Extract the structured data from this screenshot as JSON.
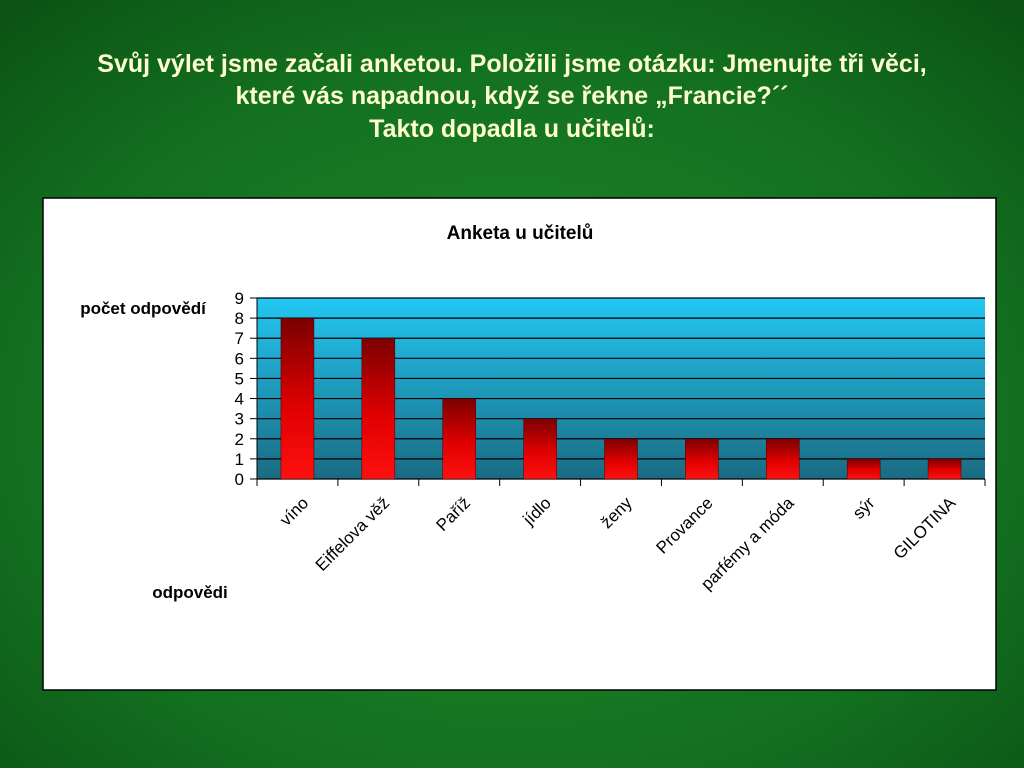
{
  "slide": {
    "heading": [
      "Svůj výlet jsme začali anketou. Položili jsme otázku: Jmenujte tři věci,",
      "které vás napadnou, když se řekne „Francie?´´",
      "Takto dopadla u učitelů:"
    ]
  },
  "chart_data": {
    "type": "bar",
    "title": "Anketa u učitelů",
    "y_label": "počet odpovědí",
    "x_label": "odpovědi",
    "categories": [
      "víno",
      "Eiffelova věž",
      "Paříž",
      "jídlo",
      "ženy",
      "Provance",
      "parfémy a móda",
      "sýr",
      "GILOTINA"
    ],
    "values": [
      8,
      7,
      4,
      3,
      2,
      2,
      2,
      1,
      1
    ],
    "color": "#ff0000",
    "ylim": [
      0,
      9
    ],
    "yticks": [
      0,
      1,
      2,
      3,
      4,
      5,
      6,
      7,
      8,
      9
    ],
    "grid": true
  }
}
